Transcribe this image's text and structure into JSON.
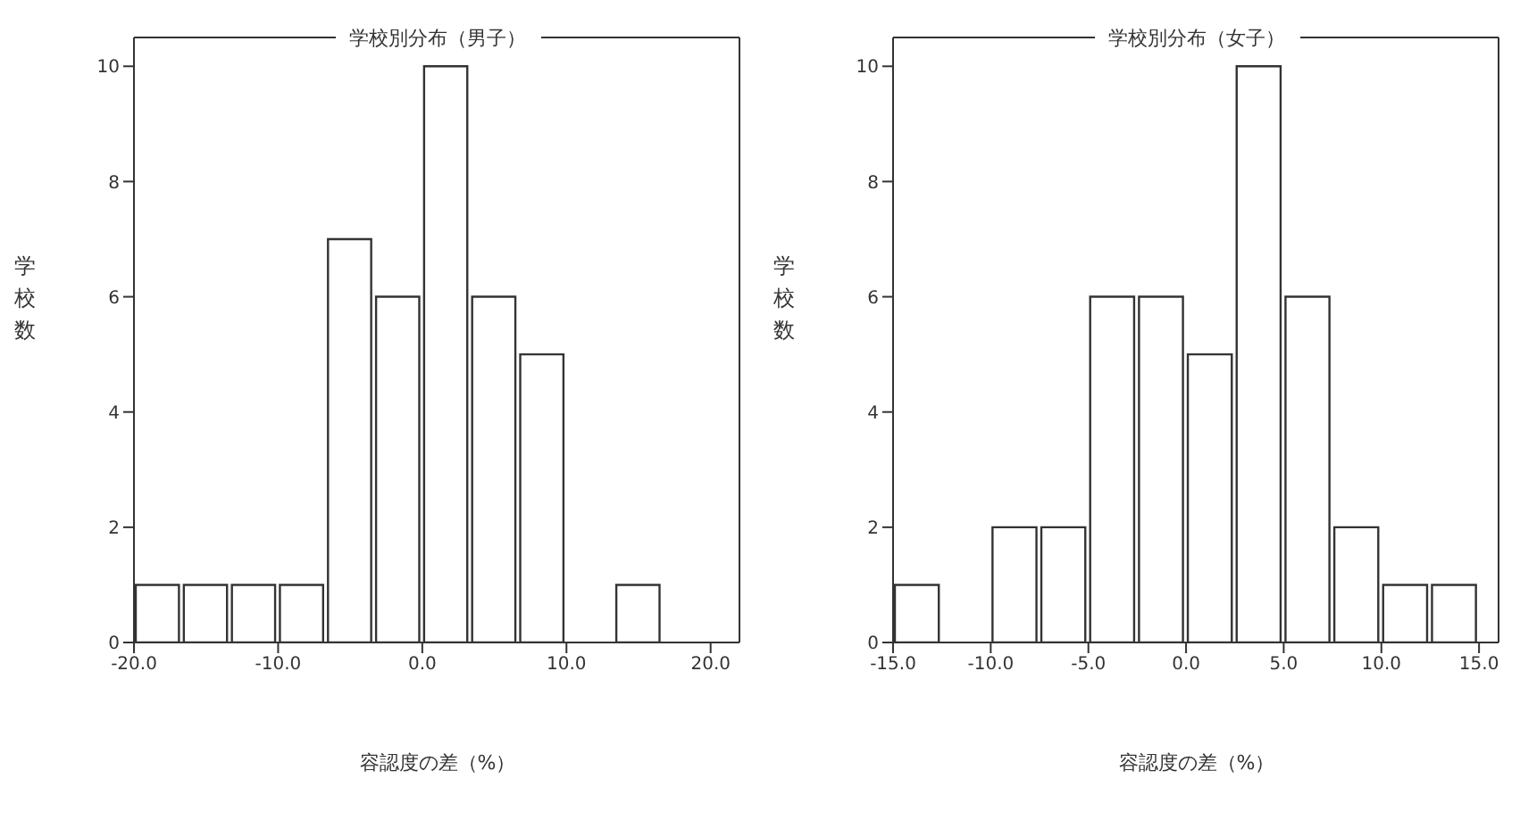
{
  "chart_data": [
    {
      "type": "histogram",
      "title": "学校別分布（男子）",
      "xlabel": "容認度の差（%）",
      "ylabel": "学校数",
      "bins": [
        -20,
        -16.67,
        -13.33,
        -10,
        -6.67,
        -3.33,
        0,
        3.33,
        6.67,
        10,
        13.33,
        16.67,
        20
      ],
      "values": [
        1,
        1,
        1,
        1,
        7,
        6,
        10,
        6,
        5,
        0,
        1,
        0
      ],
      "color": "#ffffff",
      "xlim": [
        -20,
        22
      ],
      "xticks": [
        {
          "value": -20,
          "label": "-20.0"
        },
        {
          "value": -10,
          "label": "-10.0"
        },
        {
          "value": 0,
          "label": "0.0"
        },
        {
          "value": 10,
          "label": "10.0"
        },
        {
          "value": 20,
          "label": "20.0"
        }
      ],
      "ylim": [
        0,
        10.5
      ],
      "yticks": [
        0,
        2,
        4,
        6,
        8,
        10
      ],
      "grid": false,
      "legend": false
    },
    {
      "type": "histogram",
      "title": "学校別分布（女子）",
      "xlabel": "容認度の差（%）",
      "ylabel": "学校数",
      "bins": [
        -15,
        -12.5,
        -10,
        -7.5,
        -5,
        -2.5,
        0,
        2.5,
        5,
        7.5,
        10,
        12.5,
        15
      ],
      "values": [
        1,
        0,
        2,
        2,
        6,
        6,
        5,
        10,
        6,
        2,
        1,
        1
      ],
      "color": "#ffffff",
      "xlim": [
        -15,
        16
      ],
      "xticks": [
        {
          "value": -15,
          "label": "-15.0"
        },
        {
          "value": -10,
          "label": "-10.0"
        },
        {
          "value": -5,
          "label": "-5.0"
        },
        {
          "value": 0,
          "label": "0.0"
        },
        {
          "value": 5,
          "label": "5.0"
        },
        {
          "value": 10,
          "label": "10.0"
        },
        {
          "value": 15,
          "label": "15.0"
        }
      ],
      "ylim": [
        0,
        10.5
      ],
      "yticks": [
        0,
        2,
        4,
        6,
        8,
        10
      ],
      "grid": false,
      "legend": false
    }
  ]
}
